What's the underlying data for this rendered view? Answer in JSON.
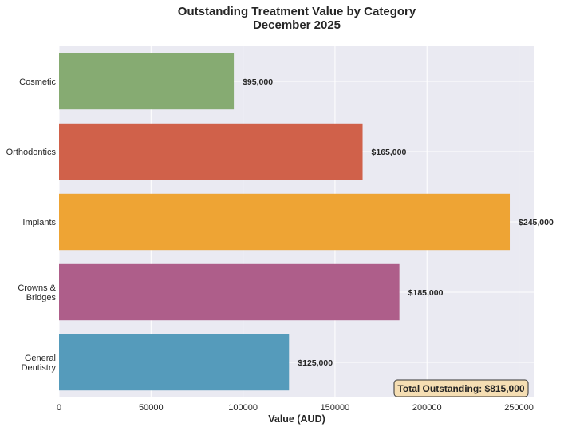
{
  "chart_data": {
    "type": "bar",
    "orientation": "horizontal",
    "title": "Outstanding Treatment Value by Category",
    "subtitle": "December 2025",
    "xlabel": "Value (AUD)",
    "ylabel": "",
    "xlim": [
      0,
      258000
    ],
    "x_ticks": [
      0,
      50000,
      100000,
      150000,
      200000,
      250000
    ],
    "x_tick_labels": [
      "0",
      "50000",
      "100000",
      "150000",
      "200000",
      "250000"
    ],
    "grid": true,
    "categories": [
      [
        "Cosmetic"
      ],
      [
        "Orthodontics"
      ],
      [
        "Implants"
      ],
      [
        "Crowns &",
        "Bridges"
      ],
      [
        "General",
        "Dentistry"
      ]
    ],
    "values": [
      95000,
      165000,
      245000,
      185000,
      125000
    ],
    "value_labels": [
      "$95,000",
      "$165,000",
      "$245,000",
      "$185,000",
      "$125,000"
    ],
    "colors": [
      "#86ab72",
      "#d0614a",
      "#eea434",
      "#ae5e8a",
      "#559bbb"
    ],
    "annotation": "Total Outstanding: $815,000",
    "background": "#eaeaf2"
  }
}
